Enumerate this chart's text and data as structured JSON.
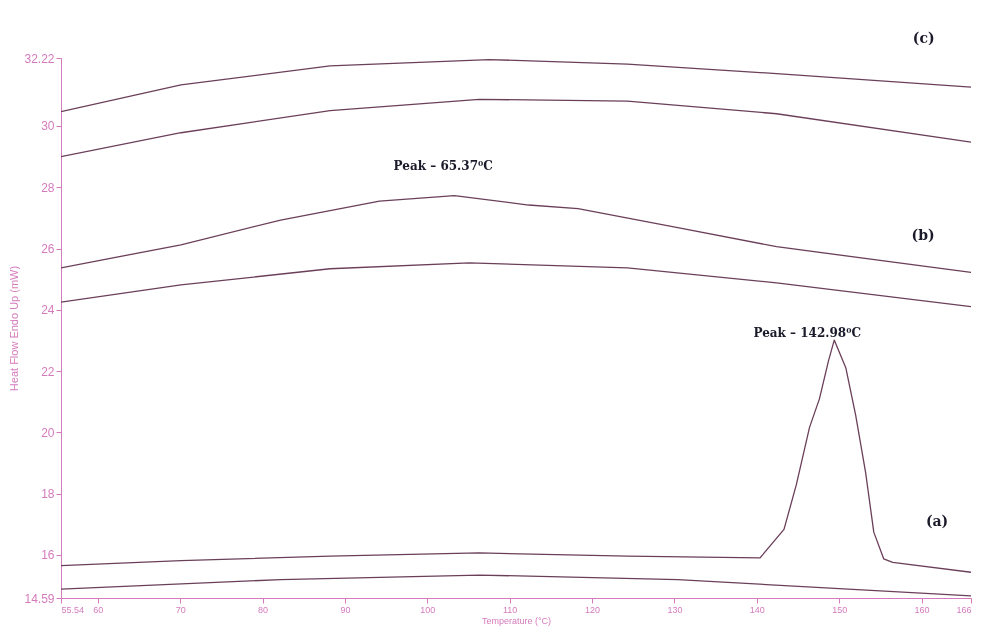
{
  "chart_data": {
    "type": "line",
    "xlabel": "Temperature (°C)",
    "ylabel": "Heat Flow Endo Up (mW)",
    "xlim": [
      55.54,
      166
    ],
    "xticks": [
      55.54,
      60,
      70,
      80,
      90,
      100,
      110,
      120,
      130,
      140,
      150,
      160,
      166
    ],
    "ylim": [
      14.59,
      32.22
    ],
    "yticks": [
      14.59,
      16,
      18,
      20,
      22,
      24,
      26,
      28,
      30,
      32.22
    ],
    "grid": false,
    "legend": false,
    "marker": "none",
    "line_style": "solid",
    "series": [
      {
        "color": "#6b3f5a",
        "x": [
          55.54,
          70.1,
          88.2,
          107.5,
          124.3,
          142.4,
          166
        ],
        "values": [
          30.47,
          31.34,
          31.96,
          32.17,
          32.02,
          31.71,
          31.27
        ]
      },
      {
        "color": "#6b3f5a",
        "x": [
          55.54,
          70.1,
          88.2,
          106.3,
          124.3,
          142.4,
          166
        ],
        "values": [
          29.0,
          29.78,
          30.5,
          30.87,
          30.81,
          30.4,
          29.47
        ]
      },
      {
        "color": "#6b3f5a",
        "x": [
          55.54,
          70.1,
          82.2,
          94.2,
          103.3,
          112.3,
          118.3,
          130.4,
          142.4,
          166
        ],
        "values": [
          25.37,
          26.12,
          26.93,
          27.55,
          27.73,
          27.42,
          27.3,
          26.68,
          26.06,
          25.22
        ]
      },
      {
        "color": "#6b3f5a",
        "x": [
          55.54,
          70.1,
          88.2,
          105.1,
          124.3,
          142.4,
          166
        ],
        "values": [
          24.25,
          24.81,
          25.34,
          25.53,
          25.37,
          24.88,
          24.1
        ]
      },
      {
        "color": "#6b3f5a",
        "x": [
          55.54,
          70.1,
          88.2,
          106.3,
          124.3,
          140.4,
          143.3,
          144.8,
          146.4,
          147.6,
          148.7,
          149.4,
          150.8,
          152.0,
          153.2,
          154.2,
          155.4,
          156.5,
          166
        ],
        "values": [
          15.65,
          15.81,
          15.96,
          16.06,
          15.96,
          15.9,
          16.83,
          18.29,
          20.16,
          21.09,
          22.33,
          23.01,
          22.11,
          20.56,
          18.7,
          16.74,
          15.87,
          15.75,
          15.43
        ]
      },
      {
        "color": "#6b3f5a",
        "x": [
          55.54,
          82.2,
          106.3,
          130.4,
          166
        ],
        "values": [
          14.88,
          15.19,
          15.34,
          15.19,
          14.66
        ]
      }
    ],
    "annotations": [
      "Peak – 65.37⁰C",
      "Peak – 142.98⁰C",
      "(b)",
      "(a)",
      "(c)"
    ]
  }
}
